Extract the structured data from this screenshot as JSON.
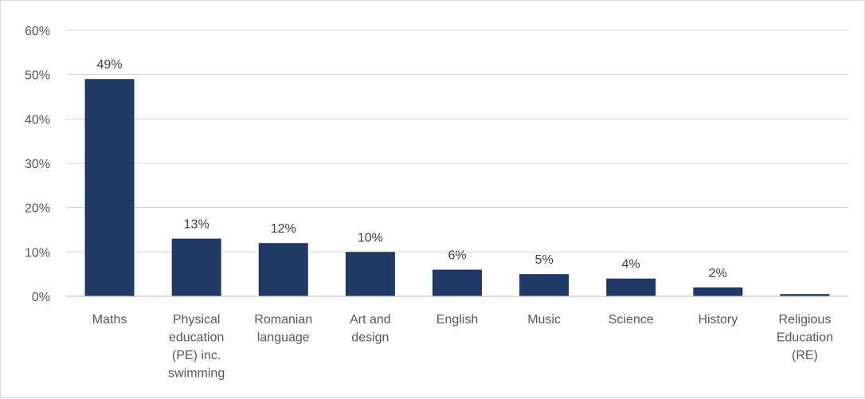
{
  "chart_data": {
    "type": "bar",
    "title": "",
    "xlabel": "",
    "ylabel": "",
    "categories": [
      [
        "Maths"
      ],
      [
        "Physical",
        "education",
        "(PE) inc.",
        "swimming"
      ],
      [
        "Romanian",
        "language"
      ],
      [
        "Art and",
        "design"
      ],
      [
        "English"
      ],
      [
        "Music"
      ],
      [
        "Science"
      ],
      [
        "History"
      ],
      [
        "Religious",
        "Education",
        "(RE)"
      ]
    ],
    "values": [
      49,
      13,
      12,
      10,
      6,
      5,
      4,
      2,
      0.5
    ],
    "data_labels": [
      "49%",
      "13%",
      "12%",
      "10%",
      "6%",
      "5%",
      "4%",
      "2%",
      ""
    ],
    "ylim": [
      0,
      60
    ],
    "yticks": [
      0,
      10,
      20,
      30,
      40,
      50,
      60
    ],
    "ytick_labels": [
      "0%",
      "10%",
      "20%",
      "30%",
      "40%",
      "50%",
      "60%"
    ],
    "grid": true,
    "legend": "none",
    "bar_color": "#1f3864"
  }
}
